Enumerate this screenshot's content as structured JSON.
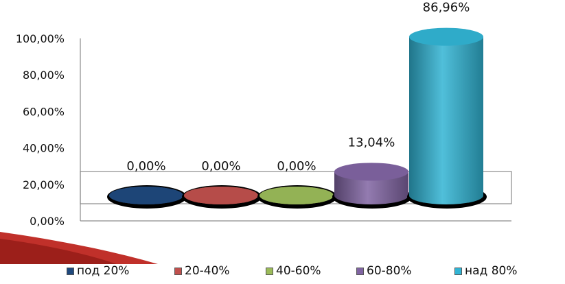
{
  "chart_data": {
    "type": "bar",
    "style": "3d-cylinder",
    "categories": [
      "под 20%",
      "20-40%",
      "40-60%",
      "60-80%",
      "над 80%"
    ],
    "values": [
      0,
      0,
      0,
      13.04,
      86.96
    ],
    "data_labels": [
      "0,00%",
      "0,00%",
      "0,00%",
      "13,04%",
      "86,96%"
    ],
    "colors": [
      "#1f497d",
      "#c0504d",
      "#9bbb59",
      "#8064a2",
      "#31b4d4"
    ],
    "yticks": [
      "0,00%",
      "20,00%",
      "40,00%",
      "60,00%",
      "80,00%",
      "100,00%"
    ],
    "ylim": [
      0,
      100
    ],
    "legend_position": "bottom",
    "grid": false
  }
}
